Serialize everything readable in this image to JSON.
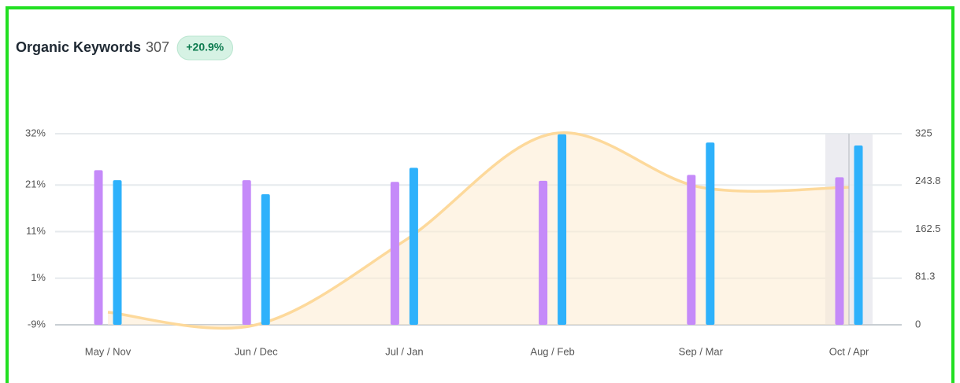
{
  "chart_data": {
    "type": "bar",
    "title": "Organic Keywords",
    "total": 307,
    "change": "+20.9%",
    "categories": [
      "May / Nov",
      "Jun / Dec",
      "Jul / Jan",
      "Aug / Feb",
      "Sep / Mar",
      "Oct / Apr"
    ],
    "series": [
      {
        "type": "bar",
        "axis": "y2",
        "color": "#c58af9",
        "values": [
          263,
          246,
          243,
          245,
          255,
          251
        ]
      },
      {
        "type": "bar",
        "axis": "y2",
        "color": "#2eb1fb",
        "values": [
          246,
          222,
          267,
          324,
          310,
          305
        ]
      },
      {
        "type": "line",
        "axis": "y",
        "color": "#fdd99b",
        "values": [
          -6.3,
          -9,
          9,
          32,
          20.5,
          20.5
        ]
      }
    ],
    "ylim": [
      -9,
      32
    ],
    "yticks": [
      {
        "value": -9,
        "label": "-9%"
      },
      {
        "value": 1,
        "label": "1%"
      },
      {
        "value": 11,
        "label": "11%"
      },
      {
        "value": 21,
        "label": "21%"
      },
      {
        "value": 32,
        "label": "32%"
      }
    ],
    "y2lim": [
      0,
      325
    ],
    "y2ticks": [
      0,
      81.3,
      162.5,
      243.8,
      325
    ],
    "grid": true
  }
}
